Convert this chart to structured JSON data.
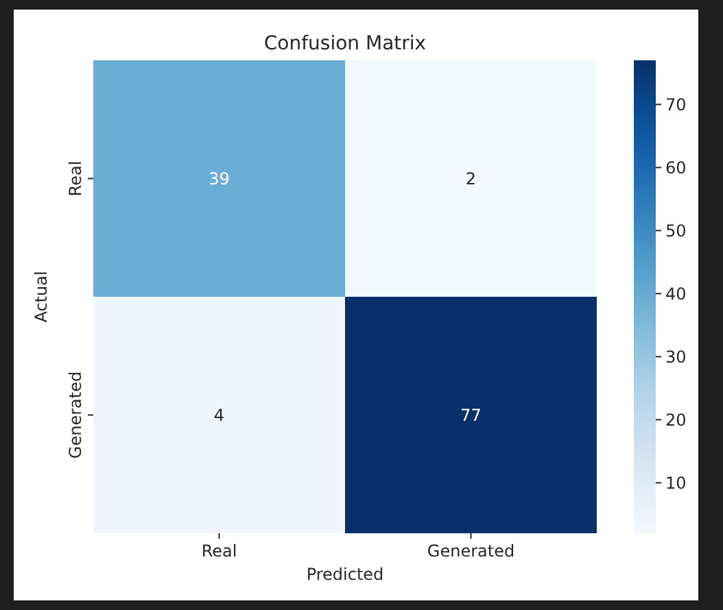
{
  "chart_data": {
    "type": "heatmap",
    "title": "Confusion Matrix",
    "xlabel": "Predicted",
    "ylabel": "Actual",
    "categories": [
      "Real",
      "Generated"
    ],
    "y_categories": [
      "Real",
      "Generated"
    ],
    "cells": [
      [
        39,
        2
      ],
      [
        4,
        77
      ]
    ],
    "clim": [
      2,
      77
    ],
    "cticks": [
      10,
      20,
      30,
      40,
      50,
      60,
      70
    ],
    "data_labels": true
  }
}
